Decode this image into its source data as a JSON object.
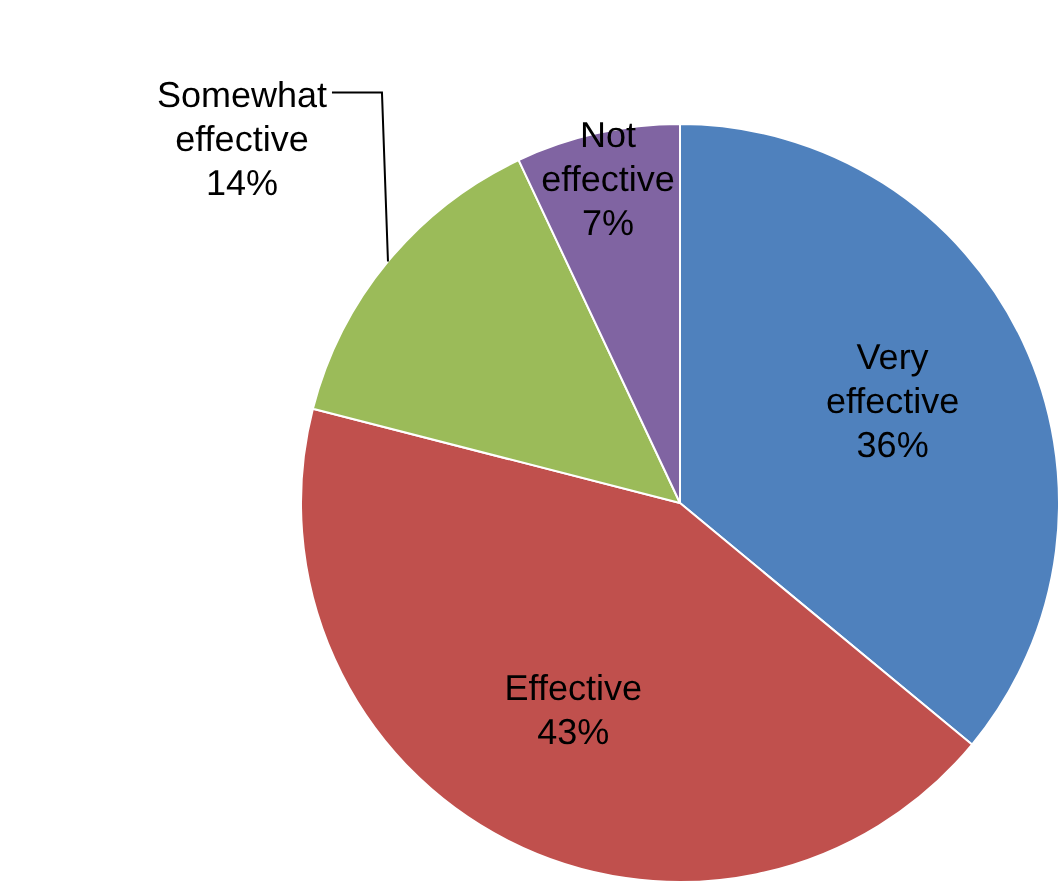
{
  "chart_data": {
    "type": "pie",
    "categories": [
      "Very effective",
      "Effective",
      "Somewhat effective",
      "Not effective"
    ],
    "values": [
      36,
      43,
      14,
      7
    ],
    "value_labels": [
      "36%",
      "43%",
      "14%",
      "7%"
    ],
    "colors": [
      "#4f81bd",
      "#c0504d",
      "#9bbb59",
      "#8064a2"
    ],
    "legend": false
  }
}
